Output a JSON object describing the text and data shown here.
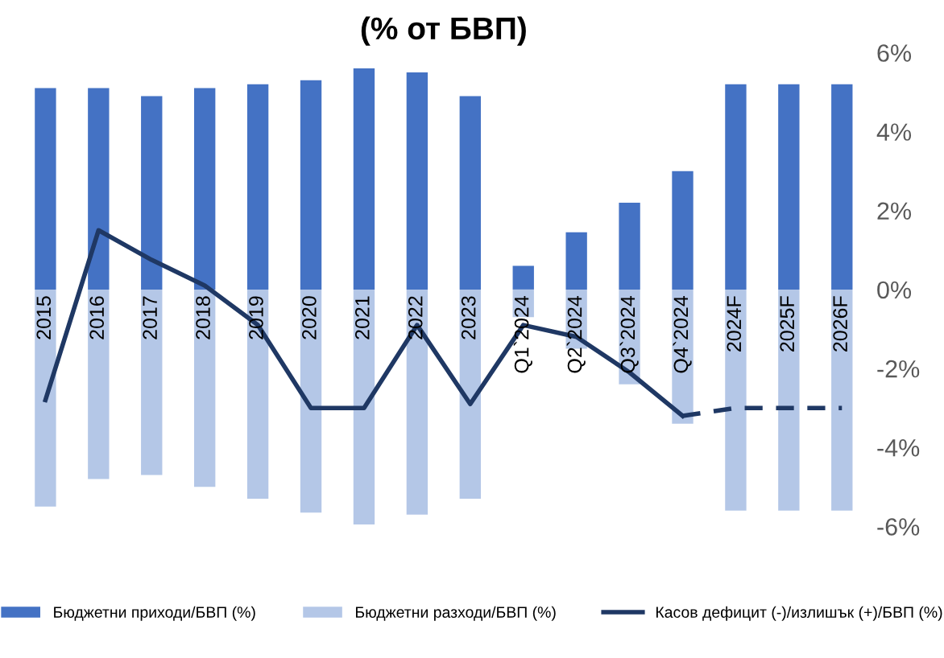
{
  "chart_data": {
    "type": "bar",
    "title": "(% от БВП)",
    "stacked": true,
    "categories": [
      "2015",
      "2016",
      "2017",
      "2018",
      "2019",
      "2020",
      "2021",
      "2022",
      "2023",
      "Q1`2024",
      "Q2`2024",
      "Q3`2024",
      "Q4`2024",
      "2024F",
      "2025F",
      "2026F"
    ],
    "series": [
      {
        "name": "Бюджетни приходи/БВП (%)",
        "color": "#4472c4",
        "values": [
          5.1,
          5.1,
          4.9,
          5.1,
          5.2,
          5.3,
          5.6,
          5.5,
          4.9,
          0.6,
          1.45,
          2.2,
          3.0,
          5.2,
          5.2,
          5.2
        ]
      },
      {
        "name": "Бюджетни разходи/БВП (%)",
        "color": "#b4c7e7",
        "values": [
          -5.5,
          -4.8,
          -4.7,
          -5.0,
          -5.3,
          -5.65,
          -5.95,
          -5.7,
          -5.3,
          -0.7,
          -1.5,
          -2.4,
          -3.4,
          -5.6,
          -5.6,
          -5.6
        ]
      },
      {
        "name": "Касов дефицит (-)/излишък (+)/БВП (%)",
        "type": "line",
        "color": "#1f3864",
        "line_style": "solid",
        "values": [
          -2.8,
          1.5,
          0.75,
          0.1,
          -0.9,
          -3.0,
          -3.0,
          -0.9,
          -2.9,
          -0.9,
          -1.2,
          -2.1,
          -3.2,
          null,
          null,
          null
        ]
      },
      {
        "type": "line",
        "color": "#1f3864",
        "line_style": "dashed",
        "values": [
          null,
          null,
          null,
          null,
          null,
          null,
          null,
          null,
          null,
          null,
          null,
          null,
          -3.2,
          -3.0,
          -3.0,
          -3.0
        ]
      }
    ],
    "ylim": [
      -6,
      6
    ],
    "yticks": [
      {
        "value": 6,
        "label": "6%"
      },
      {
        "value": 4,
        "label": "4%"
      },
      {
        "value": 2,
        "label": "2%"
      },
      {
        "value": 0,
        "label": "0%"
      },
      {
        "value": -2,
        "label": "-2%"
      },
      {
        "value": -4,
        "label": "-4%"
      },
      {
        "value": -6,
        "label": "-6%"
      }
    ],
    "grid": false,
    "legend": "bottom",
    "marker": "none"
  }
}
